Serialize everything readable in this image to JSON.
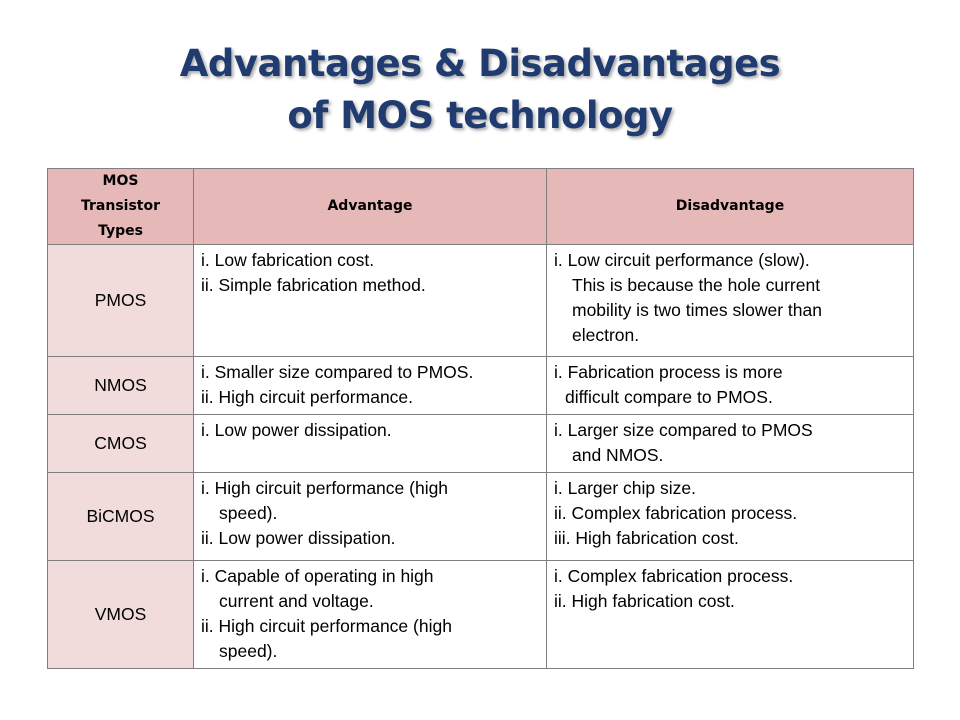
{
  "title": {
    "line1": "Advantages & Disadvantages",
    "line2": "of MOS technology"
  },
  "table": {
    "headers": [
      "MOS Transistor Types",
      "Advantage",
      "Disadvantage"
    ],
    "header_type_lines": [
      "MOS",
      "Transistor",
      "Types"
    ],
    "rows": [
      {
        "type": "PMOS",
        "advantage": [
          "i.  Low fabrication cost.",
          "ii. Simple fabrication method."
        ],
        "disadvantage": [
          "i. Low circuit performance (slow).",
          "This is because the hole current",
          "mobility is two times slower than",
          "electron."
        ]
      },
      {
        "type": "NMOS",
        "advantage": [
          "i.  Smaller size compared to PMOS.",
          "ii. High circuit performance."
        ],
        "disadvantage": [
          "i.  Fabrication process is more",
          "difficult compare to PMOS."
        ]
      },
      {
        "type": "CMOS",
        "advantage": [
          "i.  Low power dissipation."
        ],
        "disadvantage": [
          "i. Larger size compared to PMOS",
          "and NMOS."
        ]
      },
      {
        "type": "BiCMOS",
        "advantage": [
          "i.  High circuit performance (high",
          "speed).",
          "ii. Low power dissipation."
        ],
        "disadvantage": [
          "i.  Larger chip size.",
          "ii.  Complex fabrication process.",
          "iii.  High fabrication cost."
        ]
      },
      {
        "type": "VMOS",
        "advantage": [
          "i.  Capable of operating in high",
          "current  and  voltage.",
          "ii. High circuit performance (high",
          "speed)."
        ],
        "disadvantage": [
          "i.  Complex fabrication process.",
          "ii.  High fabrication cost."
        ]
      }
    ]
  },
  "colors": {
    "title": "#1f3b70",
    "header_bg": "#e6b9b8",
    "type_cell_bg": "#f2dcdb",
    "border": "#7f7f7f"
  }
}
